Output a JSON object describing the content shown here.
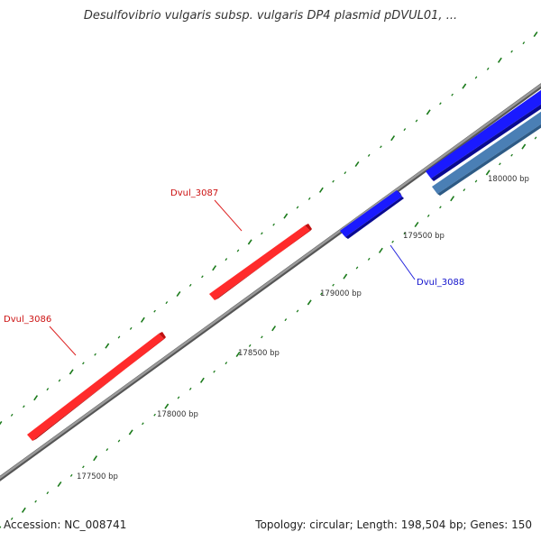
{
  "title": "Desulfovibrio vulgaris subsp. vulgaris DP4 plasmid pDVUL01, ...",
  "footer": {
    "accession": "Accession: NC_008741",
    "summary": "Topology: circular; Length: 198,504 bp; Genes: 150"
  },
  "colors": {
    "forward_gene": "#ff2020",
    "reverse_gene": "#1414e6",
    "other_gene": "#4a7fb5",
    "backbone": "#888888",
    "ticks": "#1a7a1a"
  },
  "bp_ticks": [
    {
      "label": "177500 bp"
    },
    {
      "label": "178000 bp"
    },
    {
      "label": "178500 bp"
    },
    {
      "label": "179000 bp"
    },
    {
      "label": "179500 bp"
    },
    {
      "label": "180000 bp"
    }
  ],
  "genes": [
    {
      "name": "Dvul_3086",
      "strand": "forward"
    },
    {
      "name": "Dvul_3087",
      "strand": "forward"
    },
    {
      "name": "Dvul_3088",
      "strand": "reverse"
    }
  ]
}
